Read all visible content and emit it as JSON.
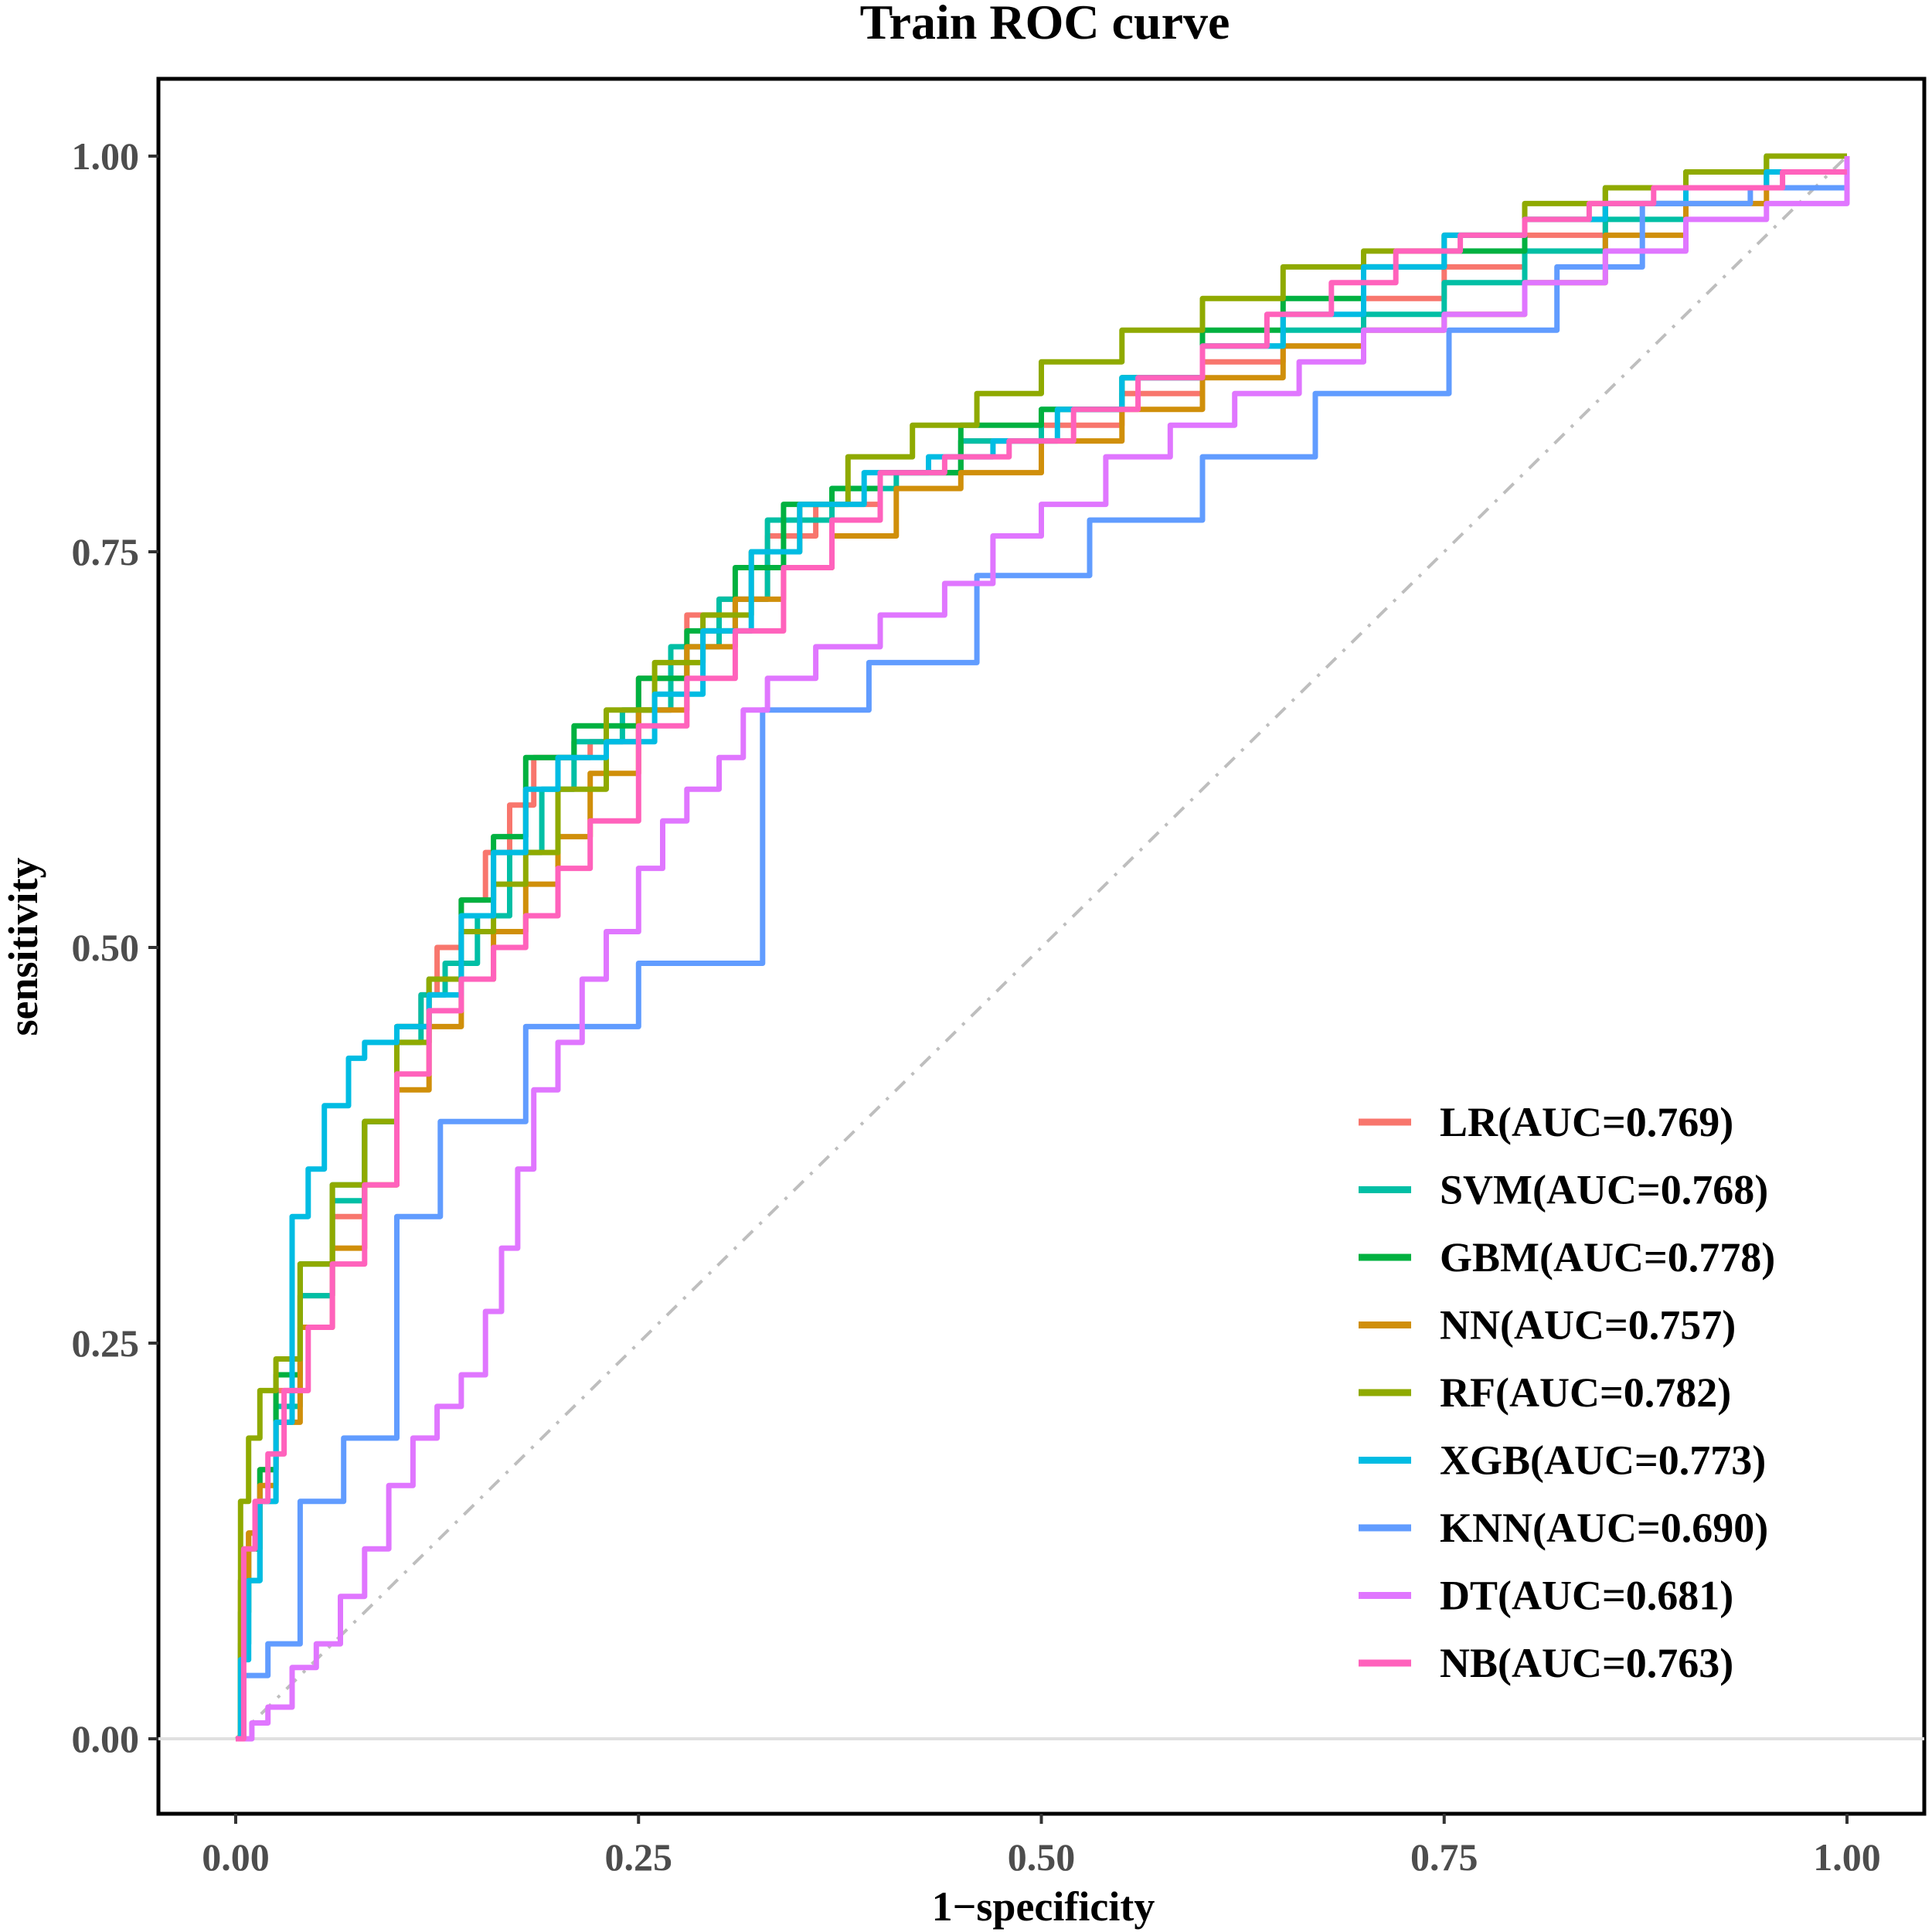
{
  "chart_data": {
    "type": "line",
    "title": "Train ROC curve",
    "xlabel": "1−specificity",
    "ylabel": "sensitivity",
    "xlim": [
      0,
      1
    ],
    "ylim": [
      0,
      1
    ],
    "x_ticks": [
      "0.00",
      "0.25",
      "0.50",
      "0.75",
      "1.00"
    ],
    "y_ticks": [
      "0.00",
      "0.25",
      "0.50",
      "0.75",
      "1.00"
    ],
    "x_tick_values": [
      0,
      0.25,
      0.5,
      0.75,
      1
    ],
    "y_tick_values": [
      0,
      0.25,
      0.5,
      0.75,
      1
    ],
    "legend_position": "bottom-right",
    "reference_line": {
      "x": [
        0,
        1
      ],
      "y": [
        0,
        1
      ],
      "style": "dotdash",
      "color": "#bebebe"
    },
    "series": [
      {
        "name": "LR(AUC=0.769)",
        "color": "#F8766D",
        "x": [
          0,
          0.003,
          0.008,
          0.015,
          0.025,
          0.04,
          0.06,
          0.08,
          0.1,
          0.115,
          0.125,
          0.14,
          0.155,
          0.17,
          0.185,
          0.2,
          0.22,
          0.25,
          0.28,
          0.3,
          0.33,
          0.36,
          0.4,
          0.45,
          0.5,
          0.55,
          0.6,
          0.65,
          0.7,
          0.75,
          0.8,
          0.85,
          0.9,
          0.95,
          1.0
        ],
        "y": [
          0,
          0.1,
          0.13,
          0.17,
          0.22,
          0.28,
          0.33,
          0.39,
          0.45,
          0.47,
          0.5,
          0.53,
          0.56,
          0.59,
          0.62,
          0.62,
          0.63,
          0.67,
          0.71,
          0.72,
          0.76,
          0.78,
          0.8,
          0.82,
          0.83,
          0.85,
          0.87,
          0.88,
          0.91,
          0.93,
          0.95,
          0.97,
          0.98,
          0.99,
          1.0
        ]
      },
      {
        "name": "SVM(AUC=0.768)",
        "color": "#00BFA5",
        "x": [
          0,
          0.003,
          0.008,
          0.015,
          0.025,
          0.04,
          0.06,
          0.08,
          0.1,
          0.115,
          0.13,
          0.15,
          0.17,
          0.19,
          0.21,
          0.24,
          0.27,
          0.3,
          0.33,
          0.37,
          0.41,
          0.45,
          0.5,
          0.55,
          0.6,
          0.65,
          0.7,
          0.75,
          0.8,
          0.85,
          0.9,
          0.95,
          1.0
        ],
        "y": [
          0,
          0.06,
          0.1,
          0.15,
          0.21,
          0.28,
          0.34,
          0.39,
          0.44,
          0.47,
          0.49,
          0.52,
          0.56,
          0.6,
          0.63,
          0.65,
          0.69,
          0.72,
          0.77,
          0.79,
          0.8,
          0.82,
          0.84,
          0.86,
          0.88,
          0.89,
          0.9,
          0.92,
          0.94,
          0.96,
          0.98,
          0.99,
          1.0
        ]
      },
      {
        "name": "GBM(AUC=0.778)",
        "color": "#00B140",
        "x": [
          0,
          0.003,
          0.008,
          0.015,
          0.025,
          0.04,
          0.06,
          0.08,
          0.1,
          0.12,
          0.14,
          0.16,
          0.18,
          0.21,
          0.25,
          0.28,
          0.31,
          0.34,
          0.37,
          0.4,
          0.45,
          0.5,
          0.55,
          0.6,
          0.65,
          0.7,
          0.75,
          0.8,
          0.85,
          0.9,
          0.95,
          1.0
        ],
        "y": [
          0,
          0.08,
          0.12,
          0.17,
          0.23,
          0.3,
          0.35,
          0.39,
          0.45,
          0.48,
          0.53,
          0.57,
          0.62,
          0.64,
          0.67,
          0.7,
          0.74,
          0.78,
          0.79,
          0.8,
          0.83,
          0.84,
          0.86,
          0.89,
          0.91,
          0.93,
          0.94,
          0.96,
          0.98,
          0.99,
          1.0,
          1.0
        ]
      },
      {
        "name": "NN(AUC=0.757)",
        "color": "#D08F0A",
        "x": [
          0,
          0.003,
          0.008,
          0.015,
          0.025,
          0.04,
          0.06,
          0.08,
          0.1,
          0.12,
          0.14,
          0.16,
          0.18,
          0.2,
          0.22,
          0.25,
          0.28,
          0.31,
          0.34,
          0.37,
          0.41,
          0.45,
          0.5,
          0.55,
          0.6,
          0.65,
          0.7,
          0.75,
          0.8,
          0.85,
          0.9,
          0.95,
          1.0
        ],
        "y": [
          0,
          0.1,
          0.13,
          0.16,
          0.2,
          0.26,
          0.31,
          0.35,
          0.41,
          0.45,
          0.48,
          0.51,
          0.54,
          0.57,
          0.61,
          0.65,
          0.69,
          0.72,
          0.74,
          0.76,
          0.79,
          0.8,
          0.82,
          0.84,
          0.86,
          0.88,
          0.89,
          0.9,
          0.92,
          0.95,
          0.97,
          0.98,
          0.99
        ]
      },
      {
        "name": "RF(AUC=0.782)",
        "color": "#8FAA00",
        "x": [
          0,
          0.003,
          0.008,
          0.015,
          0.025,
          0.04,
          0.06,
          0.08,
          0.1,
          0.12,
          0.14,
          0.16,
          0.18,
          0.2,
          0.23,
          0.26,
          0.29,
          0.32,
          0.35,
          0.38,
          0.42,
          0.46,
          0.5,
          0.55,
          0.6,
          0.65,
          0.7,
          0.75,
          0.8,
          0.85,
          0.9,
          0.95,
          1.0
        ],
        "y": [
          0,
          0.15,
          0.19,
          0.22,
          0.24,
          0.3,
          0.35,
          0.39,
          0.44,
          0.48,
          0.51,
          0.54,
          0.56,
          0.6,
          0.65,
          0.68,
          0.71,
          0.75,
          0.78,
          0.81,
          0.83,
          0.85,
          0.87,
          0.89,
          0.91,
          0.93,
          0.94,
          0.95,
          0.97,
          0.98,
          0.99,
          1.0,
          1.0
        ]
      },
      {
        "name": "XGB(AUC=0.773)",
        "color": "#00BCE3",
        "x": [
          0,
          0.003,
          0.008,
          0.015,
          0.025,
          0.035,
          0.045,
          0.055,
          0.07,
          0.08,
          0.1,
          0.12,
          0.14,
          0.16,
          0.18,
          0.2,
          0.23,
          0.26,
          0.29,
          0.32,
          0.35,
          0.39,
          0.43,
          0.47,
          0.51,
          0.55,
          0.6,
          0.65,
          0.7,
          0.75,
          0.8,
          0.85,
          0.9,
          0.95,
          1.0
        ],
        "y": [
          0,
          0.05,
          0.1,
          0.15,
          0.2,
          0.33,
          0.36,
          0.4,
          0.43,
          0.44,
          0.45,
          0.47,
          0.52,
          0.56,
          0.6,
          0.62,
          0.63,
          0.66,
          0.7,
          0.75,
          0.78,
          0.8,
          0.81,
          0.82,
          0.84,
          0.86,
          0.88,
          0.9,
          0.93,
          0.95,
          0.96,
          0.97,
          0.98,
          0.99,
          1.0
        ]
      },
      {
        "name": "KNN(AUC=0.690)",
        "color": "#619CFF",
        "x": [
          0,
          0.005,
          0.02,
          0.04,
          0.067,
          0.1,
          0.127,
          0.18,
          0.25,
          0.327,
          0.393,
          0.46,
          0.53,
          0.6,
          0.67,
          0.753,
          0.82,
          0.873,
          0.94,
          1.0
        ],
        "y": [
          0,
          0.04,
          0.06,
          0.15,
          0.19,
          0.33,
          0.39,
          0.45,
          0.49,
          0.65,
          0.68,
          0.735,
          0.77,
          0.81,
          0.85,
          0.89,
          0.93,
          0.97,
          0.98,
          1.0
        ]
      },
      {
        "name": "DT(AUC=0.681)",
        "color": "#E076FF",
        "x": [
          0,
          0.01,
          0.02,
          0.035,
          0.05,
          0.065,
          0.08,
          0.095,
          0.11,
          0.125,
          0.14,
          0.155,
          0.165,
          0.175,
          0.185,
          0.2,
          0.215,
          0.23,
          0.25,
          0.265,
          0.28,
          0.3,
          0.315,
          0.33,
          0.36,
          0.4,
          0.44,
          0.47,
          0.5,
          0.54,
          0.58,
          0.62,
          0.66,
          0.7,
          0.75,
          0.8,
          0.85,
          0.9,
          0.95,
          1.0
        ],
        "y": [
          0,
          0.01,
          0.02,
          0.045,
          0.06,
          0.09,
          0.12,
          0.16,
          0.19,
          0.21,
          0.23,
          0.27,
          0.31,
          0.36,
          0.41,
          0.44,
          0.48,
          0.51,
          0.55,
          0.58,
          0.6,
          0.62,
          0.65,
          0.67,
          0.69,
          0.71,
          0.73,
          0.76,
          0.78,
          0.81,
          0.83,
          0.85,
          0.87,
          0.89,
          0.9,
          0.92,
          0.94,
          0.96,
          0.97,
          1.0
        ]
      },
      {
        "name": "NB(AUC=0.763)",
        "color": "#FF62BC",
        "x": [
          0,
          0.005,
          0.012,
          0.02,
          0.03,
          0.045,
          0.06,
          0.08,
          0.1,
          0.12,
          0.14,
          0.16,
          0.18,
          0.2,
          0.22,
          0.25,
          0.28,
          0.31,
          0.34,
          0.37,
          0.4,
          0.44,
          0.48,
          0.52,
          0.56,
          0.6,
          0.64,
          0.68,
          0.72,
          0.76,
          0.8,
          0.84,
          0.88,
          0.92,
          0.96,
          1.0
        ],
        "y": [
          0,
          0.12,
          0.15,
          0.18,
          0.22,
          0.26,
          0.3,
          0.35,
          0.42,
          0.46,
          0.48,
          0.5,
          0.52,
          0.55,
          0.58,
          0.64,
          0.67,
          0.7,
          0.74,
          0.77,
          0.8,
          0.81,
          0.82,
          0.84,
          0.86,
          0.88,
          0.9,
          0.92,
          0.94,
          0.95,
          0.96,
          0.97,
          0.98,
          0.98,
          0.99,
          0.99
        ]
      }
    ]
  }
}
